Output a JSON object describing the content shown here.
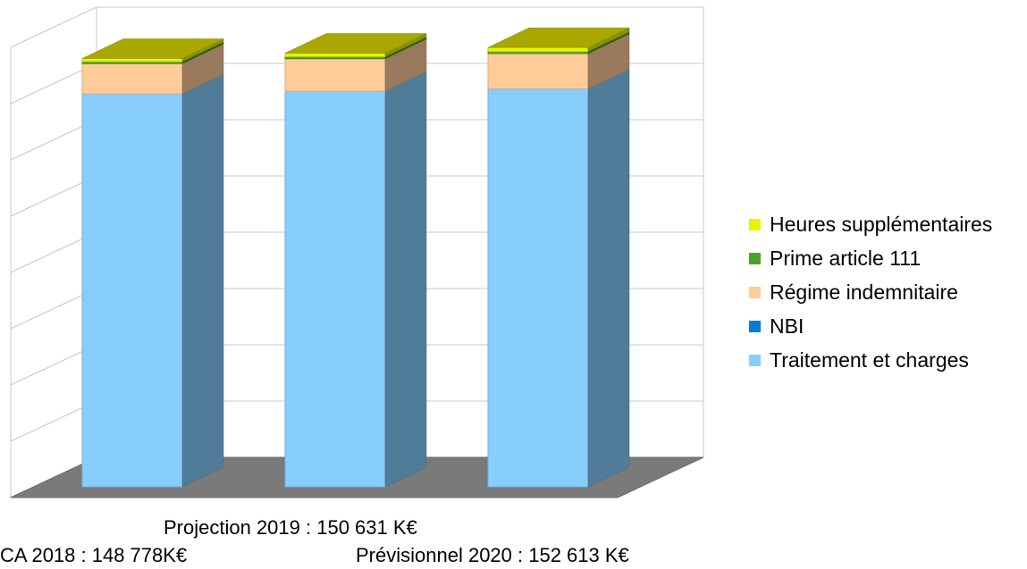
{
  "chart_data": {
    "type": "bar",
    "stacked": true,
    "three_d": true,
    "categories": [
      "CA 2018",
      "Projection 2019",
      "Prévisionnel 2020"
    ],
    "series": [
      {
        "name": "Traitement et charges",
        "color": "#87CEFF",
        "values": [
          136500,
          137400,
          138200
        ]
      },
      {
        "name": "NBI",
        "color": "#0A7BD0",
        "values": [
          0,
          0,
          0
        ]
      },
      {
        "name": "Régime indemnitaire",
        "color": "#FFCC99",
        "values": [
          10500,
          11300,
          12300
        ]
      },
      {
        "name": "Prime article 111",
        "color": "#4CA32A",
        "values": [
          700,
          700,
          700
        ]
      },
      {
        "name": "Heures supplémentaires",
        "color": "#E8F20A",
        "values": [
          1078,
          1231,
          1413
        ]
      }
    ],
    "totals": [
      148778,
      150631,
      152613
    ],
    "ylim": [
      0,
      160000
    ],
    "grid": true,
    "legend_position": "right",
    "legend_order": [
      "Heures supplémentaires",
      "Prime article 111",
      "Régime indemnitaire",
      "NBI",
      "Traitement et charges"
    ]
  },
  "legend": {
    "items": [
      {
        "label": "Heures supplémentaires",
        "color": "#E8F20A"
      },
      {
        "label": "Prime article 111",
        "color": "#4CA32A"
      },
      {
        "label": "Régime indemnitaire",
        "color": "#FFCC99"
      },
      {
        "label": "NBI",
        "color": "#0A7BD0"
      },
      {
        "label": "Traitement et charges",
        "color": "#87CEFF"
      }
    ]
  },
  "captions": {
    "ca_2018": "CA 2018 : 148 778K€",
    "projection_2019": "Projection 2019 : 150 631 K€",
    "previsionnel_2020": "Prévisionnel 2020 : 152 613 K€"
  }
}
